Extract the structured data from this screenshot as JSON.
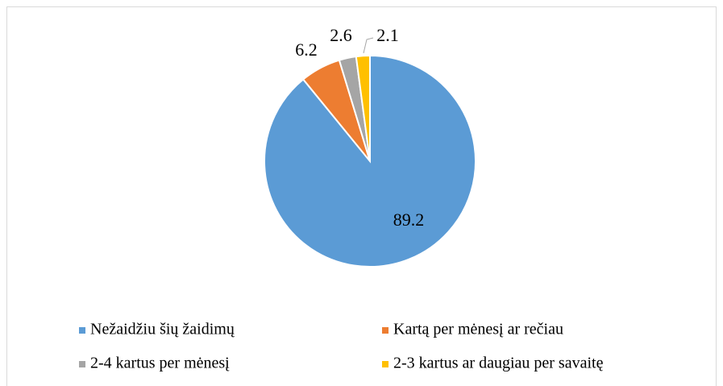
{
  "chart_data": {
    "type": "pie",
    "categories": [
      "Nežaidžiu šių žaidimų",
      "Kartą per mėnesį ar rečiau",
      "2-4 kartus per mėnesį",
      "2-3 kartus ar daugiau per savaitę"
    ],
    "values": [
      89.2,
      6.2,
      2.6,
      2.1
    ],
    "colors": [
      "#5b9bd5",
      "#ed7d31",
      "#a5a5a5",
      "#ffc000"
    ],
    "legend": "bottom"
  }
}
